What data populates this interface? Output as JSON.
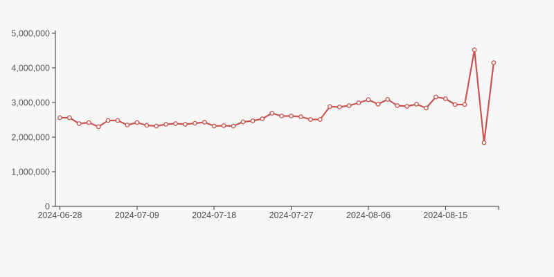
{
  "chart_data": {
    "type": "line",
    "title": "",
    "legend": false,
    "grid": false,
    "n_points": 46,
    "x_axis": {
      "kind": "category-dates",
      "tick_labels": [
        {
          "index": 0,
          "label": "2024-06-28"
        },
        {
          "index": 8,
          "label": "2024-07-09"
        },
        {
          "index": 16,
          "label": "2024-07-18"
        },
        {
          "index": 24,
          "label": "2024-07-27"
        },
        {
          "index": 32,
          "label": "2024-08-06"
        },
        {
          "index": 40,
          "label": "2024-08-15"
        }
      ],
      "end_tick": true
    },
    "y_axis": {
      "ticks": [
        0,
        1000000,
        2000000,
        3000000,
        4000000,
        5000000
      ],
      "tick_labels": [
        "0",
        "1,000,000",
        "2,000,000",
        "3,000,000",
        "4,000,000",
        "5,000,000"
      ],
      "ylim": [
        0,
        5000000
      ]
    },
    "series": [
      {
        "name": "value",
        "marker": "empty-circle",
        "values": [
          2560000,
          2560000,
          2390000,
          2420000,
          2300000,
          2480000,
          2480000,
          2350000,
          2420000,
          2340000,
          2320000,
          2370000,
          2390000,
          2370000,
          2400000,
          2430000,
          2320000,
          2330000,
          2320000,
          2440000,
          2470000,
          2530000,
          2690000,
          2610000,
          2610000,
          2590000,
          2510000,
          2510000,
          2880000,
          2870000,
          2910000,
          2990000,
          3080000,
          2950000,
          3090000,
          2910000,
          2890000,
          2950000,
          2840000,
          3160000,
          3110000,
          2940000,
          2940000,
          4520000,
          1840000,
          4150000
        ]
      }
    ],
    "colors": {
      "line": "#c85450",
      "marker_fill": "#fcfcfc",
      "axis": "#333333",
      "y_label": "#585858",
      "x_label": "#4c4c4c",
      "background": "#f7f7f8"
    }
  }
}
